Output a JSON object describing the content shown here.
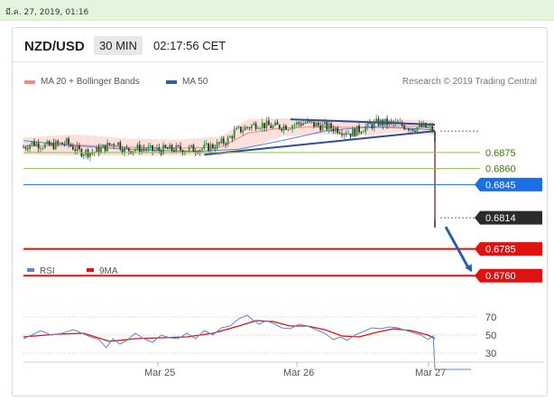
{
  "date_bar": "มี.ค. 27, 2019, 01:16",
  "header": {
    "symbol": "NZD/USD",
    "timeframe": "30 MIN",
    "time": "02:17:56 CET"
  },
  "legend": [
    {
      "label": "MA 20 + Bollinger Bands",
      "color": "#f08a84"
    },
    {
      "label": "MA 50",
      "color": "#2f5ea8"
    }
  ],
  "credit": "Research © 2019 Trading Central",
  "colors": {
    "support_green": "#8bc34a",
    "blue_level": "#1a6fe6",
    "red_level": "#e0120f",
    "current": "#2b2b2b",
    "candle_up": "#2f8f2f",
    "candle_down": "#333333",
    "trend": "#2f4f8f",
    "rsi_line": "#5b84d6",
    "rsi_ma": "#e0120f"
  },
  "chart_data": [
    {
      "type": "candlestick",
      "title": "NZD/USD",
      "timeframe": "30 MIN",
      "ylim": [
        0.6745,
        0.6915
      ],
      "x_ticks": [
        "Mar 25",
        "Mar 26",
        "Mar 27"
      ],
      "price_path": [
        [
          0,
          0.688
        ],
        [
          10,
          0.6884
        ],
        [
          28,
          0.6881
        ],
        [
          50,
          0.6884
        ],
        [
          65,
          0.6876
        ],
        [
          80,
          0.6875
        ],
        [
          95,
          0.688
        ],
        [
          108,
          0.6885
        ],
        [
          118,
          0.6877
        ],
        [
          135,
          0.6879
        ],
        [
          150,
          0.6877
        ],
        [
          170,
          0.6878
        ],
        [
          190,
          0.6878
        ],
        [
          210,
          0.6879
        ],
        [
          225,
          0.6882
        ],
        [
          238,
          0.6887
        ],
        [
          245,
          0.6894
        ],
        [
          258,
          0.6898
        ],
        [
          272,
          0.6902
        ],
        [
          290,
          0.6899
        ],
        [
          308,
          0.69
        ],
        [
          325,
          0.6903
        ],
        [
          345,
          0.69
        ],
        [
          365,
          0.6897
        ],
        [
          380,
          0.6893
        ],
        [
          395,
          0.6898
        ],
        [
          412,
          0.6903
        ],
        [
          428,
          0.6902
        ],
        [
          442,
          0.69
        ],
        [
          452,
          0.6898
        ],
        [
          465,
          0.6899
        ],
        [
          478,
          0.6896
        ]
      ],
      "drop": {
        "from": 0.6895,
        "to": 0.6805
      },
      "ma20_bollinger": {
        "mid": [
          [
            0,
            0.6881
          ],
          [
            60,
            0.6882
          ],
          [
            120,
            0.688
          ],
          [
            180,
            0.6879
          ],
          [
            230,
            0.688
          ],
          [
            260,
            0.6893
          ],
          [
            300,
            0.6898
          ],
          [
            350,
            0.6899
          ],
          [
            400,
            0.6898
          ],
          [
            440,
            0.69
          ],
          [
            478,
            0.6898
          ]
        ],
        "upper": [
          [
            0,
            0.6889
          ],
          [
            60,
            0.6892
          ],
          [
            120,
            0.6888
          ],
          [
            180,
            0.6887
          ],
          [
            230,
            0.689
          ],
          [
            260,
            0.6906
          ],
          [
            300,
            0.6907
          ],
          [
            350,
            0.6906
          ],
          [
            400,
            0.6905
          ],
          [
            440,
            0.6906
          ],
          [
            478,
            0.6905
          ]
        ],
        "lower": [
          [
            0,
            0.6873
          ],
          [
            60,
            0.6872
          ],
          [
            120,
            0.6872
          ],
          [
            180,
            0.6872
          ],
          [
            230,
            0.6872
          ],
          [
            260,
            0.6878
          ],
          [
            300,
            0.689
          ],
          [
            350,
            0.6892
          ],
          [
            400,
            0.6891
          ],
          [
            440,
            0.6894
          ],
          [
            478,
            0.6891
          ]
        ]
      },
      "ma50": [
        [
          0,
          0.6886
        ],
        [
          50,
          0.6882
        ],
        [
          100,
          0.6879
        ],
        [
          150,
          0.6877
        ],
        [
          200,
          0.6876
        ],
        [
          250,
          0.6878
        ],
        [
          300,
          0.6886
        ],
        [
          350,
          0.6895
        ],
        [
          400,
          0.6899
        ],
        [
          440,
          0.6898
        ],
        [
          478,
          0.6896
        ]
      ],
      "trendlines": [
        {
          "from": [
            210,
            0.6873
          ],
          "to": [
            478,
            0.6895
          ]
        },
        {
          "from": [
            310,
            0.6906
          ],
          "to": [
            478,
            0.6901
          ]
        }
      ],
      "levels": [
        {
          "label": "0.6875",
          "value": 0.6875,
          "style": "green"
        },
        {
          "label": "0.6860",
          "value": 0.686,
          "style": "green"
        },
        {
          "label": "0.6845",
          "value": 0.6845,
          "style": "blue"
        },
        {
          "label": "0.6814",
          "value": 0.6814,
          "style": "current"
        },
        {
          "label": "0.6785",
          "value": 0.6785,
          "style": "red"
        },
        {
          "label": "0.6760",
          "value": 0.676,
          "style": "red"
        }
      ],
      "forecast_arrow": {
        "from": 0.6814,
        "to": 0.676
      }
    },
    {
      "type": "line",
      "title": "",
      "legend": [
        {
          "label": "RSI",
          "color": "#5b84d6"
        },
        {
          "label": "9MA",
          "color": "#e0120f"
        }
      ],
      "ylim": [
        20,
        80
      ],
      "y_ticks": [
        70,
        50,
        30
      ],
      "series": [
        {
          "name": "RSI",
          "values": [
            [
              0,
              46
            ],
            [
              10,
              50
            ],
            [
              20,
              55
            ],
            [
              32,
              50
            ],
            [
              45,
              52
            ],
            [
              58,
              56
            ],
            [
              68,
              52
            ],
            [
              78,
              48
            ],
            [
              88,
              45
            ],
            [
              96,
              36
            ],
            [
              104,
              46
            ],
            [
              112,
              40
            ],
            [
              120,
              44
            ],
            [
              130,
              52
            ],
            [
              140,
              46
            ],
            [
              150,
              42
            ],
            [
              160,
              50
            ],
            [
              170,
              47
            ],
            [
              180,
              46
            ],
            [
              190,
              52
            ],
            [
              200,
              46
            ],
            [
              210,
              55
            ],
            [
              220,
              50
            ],
            [
              230,
              58
            ],
            [
              240,
              60
            ],
            [
              250,
              68
            ],
            [
              260,
              72
            ],
            [
              266,
              67
            ],
            [
              274,
              62
            ],
            [
              282,
              66
            ],
            [
              290,
              63
            ],
            [
              300,
              58
            ],
            [
              310,
              57
            ],
            [
              320,
              62
            ],
            [
              330,
              60
            ],
            [
              340,
              56
            ],
            [
              350,
              52
            ],
            [
              360,
              45
            ],
            [
              368,
              48
            ],
            [
              376,
              44
            ],
            [
              385,
              50
            ],
            [
              395,
              54
            ],
            [
              405,
              58
            ],
            [
              415,
              57
            ],
            [
              425,
              59
            ],
            [
              435,
              58
            ],
            [
              445,
              55
            ],
            [
              455,
              52
            ],
            [
              462,
              50
            ],
            [
              470,
              45
            ],
            [
              476,
              49
            ],
            [
              478,
              12
            ],
            [
              520,
              12
            ]
          ]
        },
        {
          "name": "9MA",
          "values": [
            [
              0,
              48
            ],
            [
              40,
              51
            ],
            [
              70,
              52
            ],
            [
              100,
              43
            ],
            [
              130,
              46
            ],
            [
              160,
              47
            ],
            [
              190,
              48
            ],
            [
              220,
              52
            ],
            [
              250,
              60
            ],
            [
              270,
              66
            ],
            [
              290,
              65
            ],
            [
              310,
              60
            ],
            [
              330,
              60
            ],
            [
              350,
              56
            ],
            [
              370,
              49
            ],
            [
              390,
              48
            ],
            [
              410,
              53
            ],
            [
              430,
              57
            ],
            [
              450,
              55
            ],
            [
              470,
              50
            ],
            [
              478,
              46
            ]
          ]
        }
      ]
    }
  ]
}
